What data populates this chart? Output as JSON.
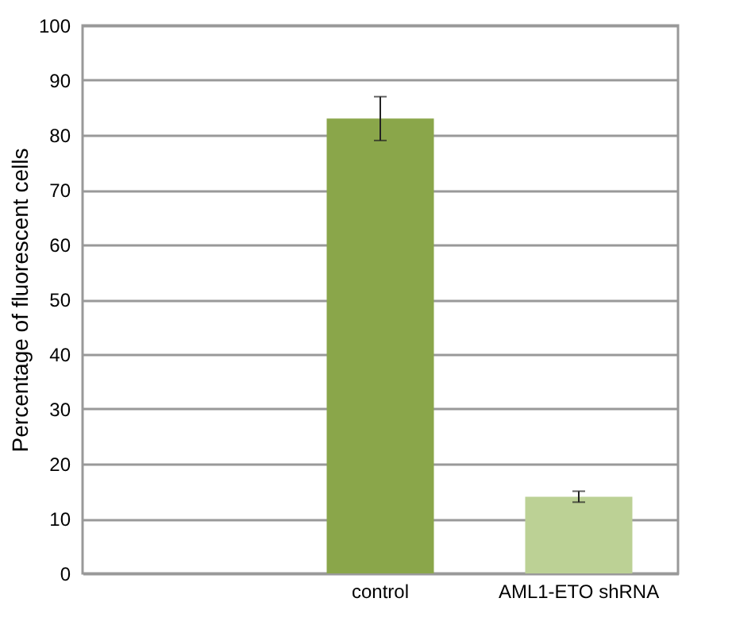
{
  "chart_data": {
    "type": "bar",
    "ylabel": "Percentage of fluorescent cells",
    "categories": [
      null,
      "control",
      "AML1-ETO shRNA"
    ],
    "values": [
      null,
      83,
      14
    ],
    "colors": [
      "#8aa64a",
      "#8aa64a",
      "#bcd195"
    ],
    "errors": [
      null,
      4,
      1
    ],
    "ylim": [
      0,
      100
    ],
    "yticks": [
      0,
      10,
      20,
      30,
      40,
      50,
      60,
      70,
      80,
      90,
      100
    ],
    "grid": "y"
  }
}
